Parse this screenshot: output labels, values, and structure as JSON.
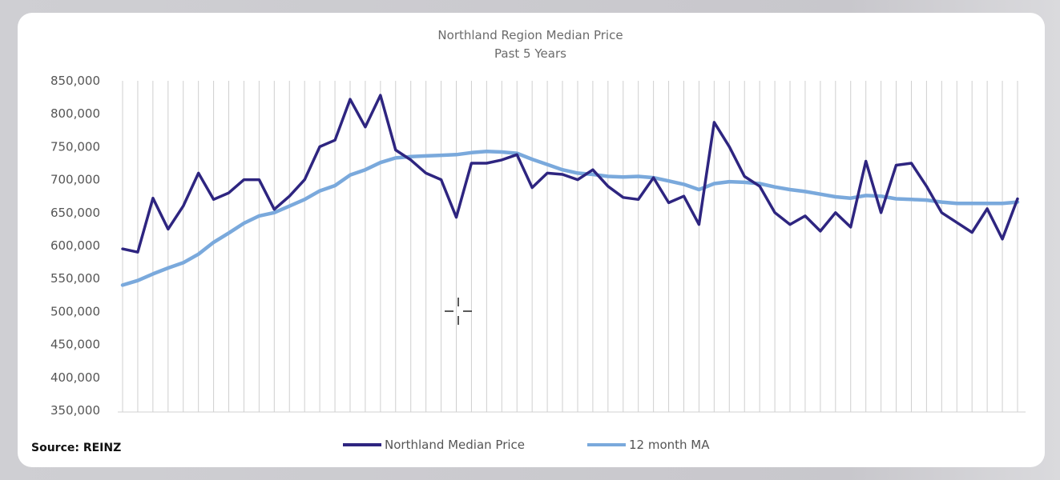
{
  "chart_data": {
    "type": "line",
    "title": "Northland Region Median Price",
    "subtitle": "Past 5 Years",
    "xlabel": "",
    "ylabel": "",
    "ylim": [
      350000,
      850000
    ],
    "yticks": [
      "850,000",
      "800,000",
      "750,000",
      "700,000",
      "650,000",
      "600,000",
      "550,000",
      "500,000",
      "450,000",
      "400,000",
      "350,000"
    ],
    "yticks_values": [
      850000,
      800000,
      750000,
      700000,
      650000,
      600000,
      550000,
      500000,
      450000,
      400000,
      350000
    ],
    "grid": "vertical",
    "legend_position": "bottom",
    "series": [
      {
        "name": "Northland Median Price",
        "color": "#2e2580",
        "values": [
          595000,
          590000,
          672000,
          625000,
          660000,
          710000,
          670000,
          680000,
          700000,
          700000,
          655000,
          675000,
          700000,
          750000,
          760000,
          822000,
          780000,
          828000,
          745000,
          730000,
          710000,
          700000,
          643000,
          725000,
          725000,
          730000,
          738000,
          688000,
          710000,
          708000,
          700000,
          715000,
          690000,
          673000,
          670000,
          703000,
          665000,
          675000,
          632000,
          787000,
          750000,
          705000,
          690000,
          650000,
          632000,
          645000,
          622000,
          650000,
          628000,
          728000,
          650000,
          722000,
          725000,
          690000,
          650000,
          635000,
          620000,
          656000,
          610000,
          671000
        ]
      },
      {
        "name": "12 month MA",
        "color": "#7aa9dc",
        "values": [
          540000,
          547000,
          557000,
          566000,
          574000,
          587000,
          605000,
          619000,
          634000,
          645000,
          650000,
          660000,
          670000,
          683000,
          691000,
          707000,
          715000,
          726000,
          733000,
          735000,
          736000,
          737000,
          738000,
          741000,
          743000,
          742000,
          740000,
          731000,
          723000,
          715000,
          710000,
          708000,
          705000,
          704000,
          705000,
          703000,
          698000,
          693000,
          685000,
          694000,
          697000,
          696000,
          694000,
          689000,
          685000,
          682000,
          678000,
          674000,
          672000,
          676000,
          675000,
          671000,
          670000,
          669000,
          666000,
          664000,
          664000,
          664000,
          664000,
          666000
        ]
      }
    ]
  },
  "footer": {
    "source": "Source: REINZ"
  }
}
